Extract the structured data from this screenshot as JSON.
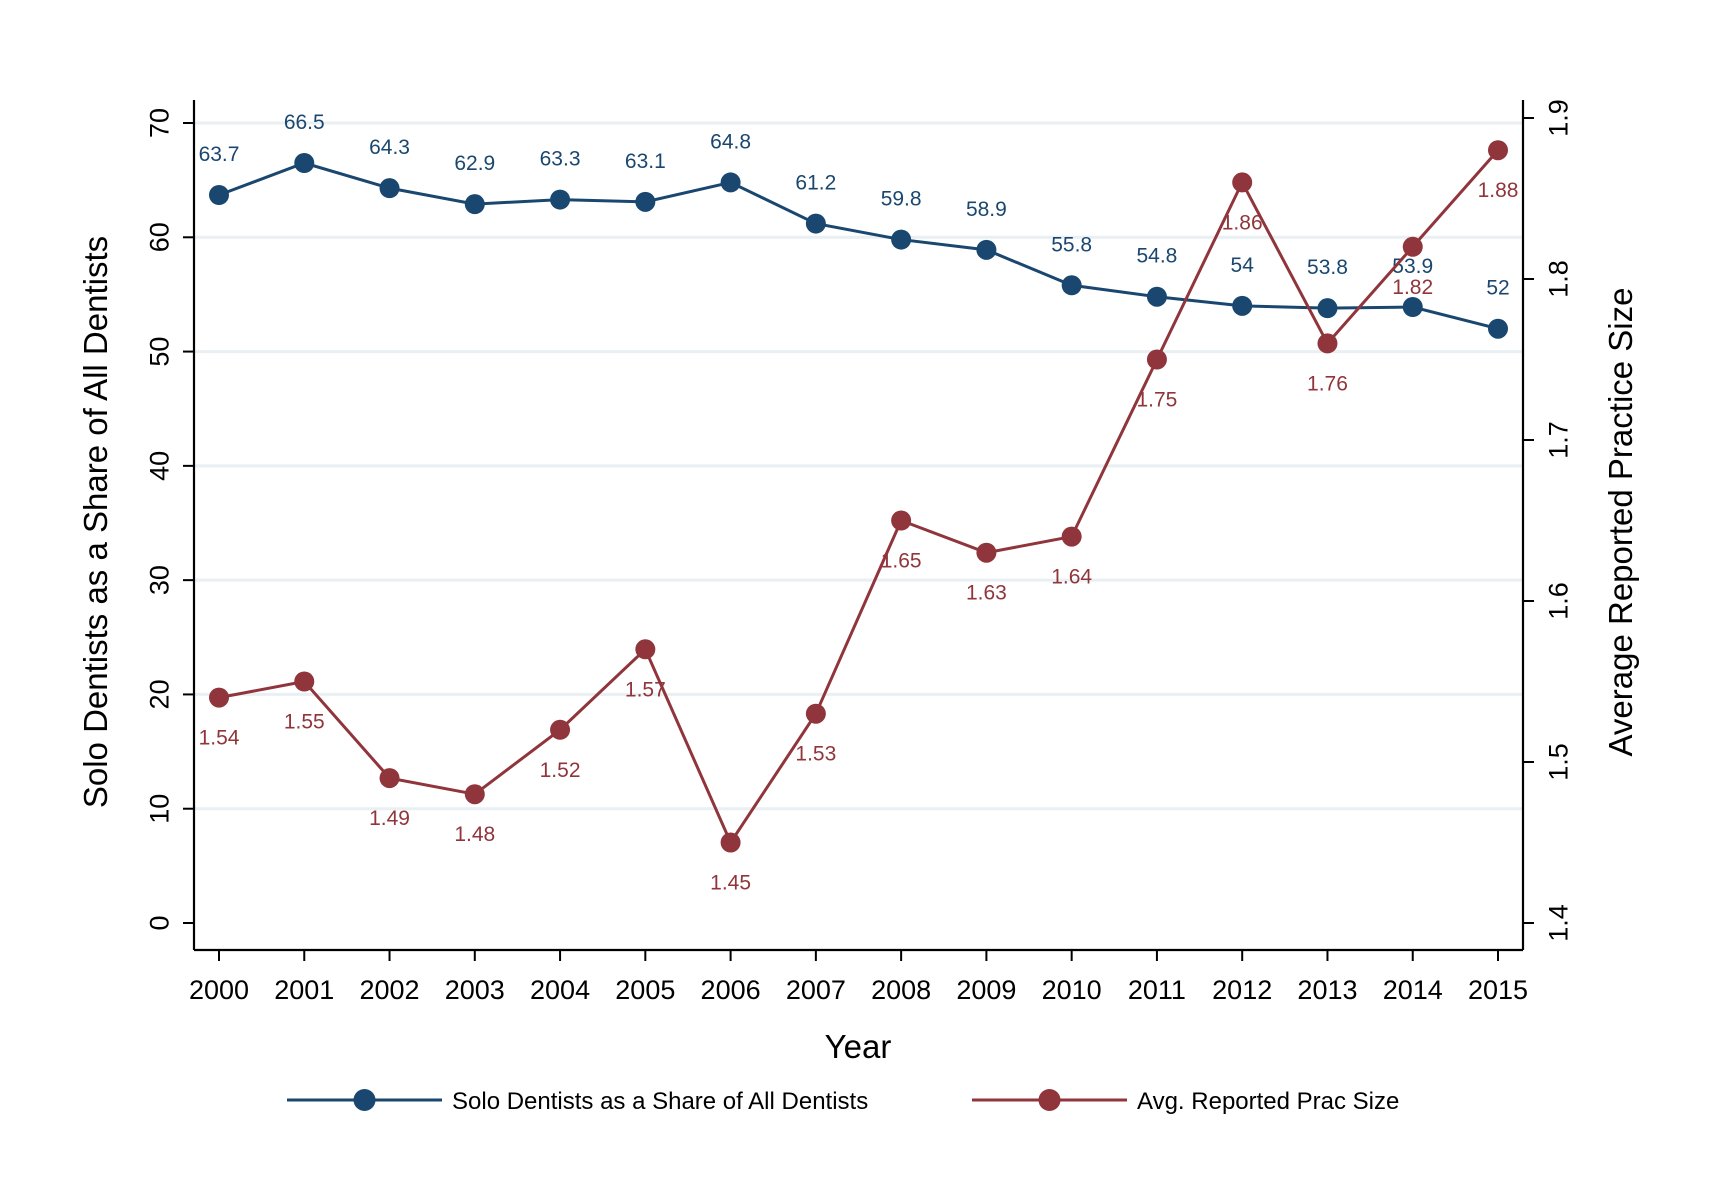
{
  "chart_data": {
    "type": "line",
    "title": "",
    "xlabel": "Year",
    "ylabel_left": "Solo Dentists as a Share of All Dentists",
    "ylabel_right": "Average Reported Practice Size",
    "x": [
      "2000",
      "2001",
      "2002",
      "2003",
      "2004",
      "2005",
      "2006",
      "2007",
      "2008",
      "2009",
      "2010",
      "2011",
      "2012",
      "2013",
      "2014",
      "2015"
    ],
    "ylim_left": [
      0,
      70
    ],
    "yticks_left": [
      "0",
      "10",
      "20",
      "30",
      "40",
      "50",
      "60",
      "70"
    ],
    "ylim_right": [
      1.4,
      1.9
    ],
    "yticks_right": [
      "1.4",
      "1.5",
      "1.6",
      "1.7",
      "1.8",
      "1.9"
    ],
    "grid": true,
    "legend_position": "bottom",
    "series": [
      {
        "name": "Solo Dentists as a Share of All Dentists",
        "axis": "left",
        "color": "#1a476f",
        "values": [
          63.7,
          66.5,
          64.3,
          62.9,
          63.3,
          63.1,
          64.8,
          61.2,
          59.8,
          58.9,
          55.8,
          54.8,
          54,
          53.8,
          53.9,
          52
        ],
        "labels": [
          "63.7",
          "66.5",
          "64.3",
          "62.9",
          "63.3",
          "63.1",
          "64.8",
          "61.2",
          "59.8",
          "58.9",
          "55.8",
          "54.8",
          "54",
          "53.8",
          "53.9",
          "52"
        ]
      },
      {
        "name": "Avg. Reported Prac Size",
        "axis": "right",
        "color": "#90353b",
        "values": [
          1.54,
          1.55,
          1.49,
          1.48,
          1.52,
          1.57,
          1.45,
          1.53,
          1.65,
          1.63,
          1.64,
          1.75,
          1.86,
          1.76,
          1.82,
          1.88
        ],
        "labels": [
          "1.54",
          "1.55",
          "1.49",
          "1.48",
          "1.52",
          "1.57",
          "1.45",
          "1.53",
          "1.65",
          "1.63",
          "1.64",
          "1.75",
          "1.86",
          "1.76",
          "1.82",
          "1.88"
        ]
      }
    ]
  }
}
